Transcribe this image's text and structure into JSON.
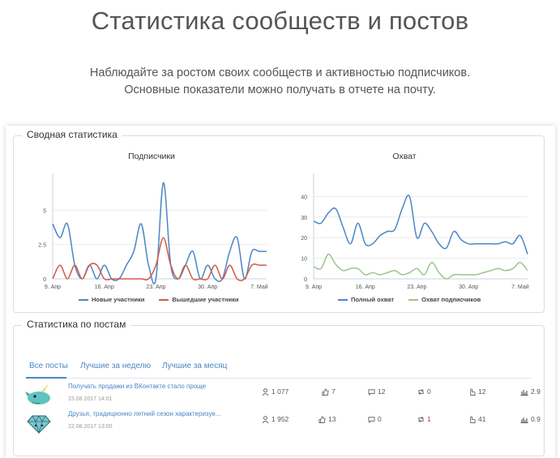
{
  "header": {
    "title": "Статистика сообществ и постов",
    "subtitle_line1": "Наблюдайте за ростом своих сообществ и активностью подписчиков.",
    "subtitle_line2": "Основные показатели можно получать в отчете на почту."
  },
  "summary": {
    "legend": "Сводная статистика",
    "subscribers_chart": {
      "title": "Подписчики",
      "x_ticks": [
        "9. Апр",
        "16. Апр",
        "23. Апр",
        "30. Апр",
        "7. Май"
      ],
      "y_ticks": [
        "0",
        "2.5",
        "5"
      ],
      "legend_new": "Новые участники",
      "legend_left": "Вышедшие участники"
    },
    "reach_chart": {
      "title": "Охват",
      "x_ticks": [
        "9. Апр",
        "16. Апр",
        "23. Апр",
        "30. Апр",
        "7. Май"
      ],
      "y_ticks": [
        "0",
        "10",
        "20",
        "30",
        "40"
      ],
      "legend_full": "Полный охват",
      "legend_subs": "Охват подписчиков"
    }
  },
  "chart_data": [
    {
      "type": "line",
      "title": "Подписчики",
      "x": [
        "9. Апр",
        "10",
        "11",
        "12",
        "13",
        "14",
        "15",
        "16. Апр",
        "17",
        "18",
        "19",
        "20",
        "21",
        "22",
        "23. Апр",
        "24",
        "25",
        "26",
        "27",
        "28",
        "29",
        "30. Апр",
        "1",
        "2",
        "3",
        "4",
        "5",
        "6",
        "7. Май",
        "8"
      ],
      "ylim": [
        0,
        7.2
      ],
      "series": [
        {
          "name": "Новые участники",
          "color": "#4a86c5",
          "values": [
            4,
            3,
            4,
            1,
            0,
            1,
            0,
            1,
            0,
            0,
            1,
            2,
            4,
            1,
            0,
            7,
            1,
            0,
            1,
            2,
            0,
            1,
            0,
            0,
            2,
            3,
            0,
            2,
            2,
            2
          ]
        },
        {
          "name": "Вышедшие участники",
          "color": "#d05a4a",
          "values": [
            0,
            1,
            0,
            1,
            0,
            1,
            1,
            0,
            0,
            0,
            0,
            0,
            0,
            0,
            1,
            3,
            1,
            0,
            1,
            0,
            0,
            0,
            1,
            0,
            1,
            0,
            0,
            1,
            1,
            1
          ]
        }
      ]
    },
    {
      "type": "line",
      "title": "Охват",
      "x": [
        "9. Апр",
        "10",
        "11",
        "12",
        "13",
        "14",
        "15",
        "16. Апр",
        "17",
        "18",
        "19",
        "20",
        "21",
        "22",
        "23. Апр",
        "24",
        "25",
        "26",
        "27",
        "28",
        "29",
        "30. Апр",
        "1",
        "2",
        "3",
        "4",
        "5",
        "6",
        "7. Май",
        "8"
      ],
      "ylim": [
        0,
        48
      ],
      "series": [
        {
          "name": "Полный охват",
          "color": "#4a86c5",
          "values": [
            28,
            27,
            32,
            34,
            25,
            17,
            27,
            17,
            17,
            21,
            23,
            24,
            34,
            40,
            20,
            27,
            23,
            17,
            15,
            23,
            19,
            17,
            17,
            17,
            17,
            17,
            18,
            17,
            21,
            12
          ]
        },
        {
          "name": "Охват подписчиков",
          "color": "#9cc48c",
          "values": [
            6,
            5,
            12,
            7,
            4,
            5,
            5,
            2,
            3,
            2,
            3,
            4,
            2,
            3,
            5,
            2,
            8,
            3,
            0,
            2,
            2,
            2,
            2,
            3,
            4,
            5,
            4,
            5,
            8,
            4
          ]
        }
      ]
    }
  ],
  "posts_section": {
    "legend": "Статистика по постам",
    "tabs": [
      "Все посты",
      "Лучшие за неделю",
      "Лучшие за месяц"
    ]
  },
  "posts": [
    {
      "title": "Получать продажи из ВКонтакте стало проще",
      "date": "23.08.2017 14:01",
      "views": "1 077",
      "likes": "7",
      "comments": "12",
      "reposts": "0",
      "clicks": "12",
      "er": "2.9",
      "avatar_color": "#5fc4c0"
    },
    {
      "title": "Друзья, традиционно летний сезон характеризуе...",
      "date": "22.08.2017 13:00",
      "views": "1 952",
      "likes": "13",
      "comments": "0",
      "reposts": "1",
      "clicks": "41",
      "er": "0.9",
      "avatar_color": "#7ac6cf"
    }
  ],
  "colors": {
    "accent": "#4a86c5",
    "left_series": "#d05a4a",
    "subs_series": "#9cc48c"
  }
}
